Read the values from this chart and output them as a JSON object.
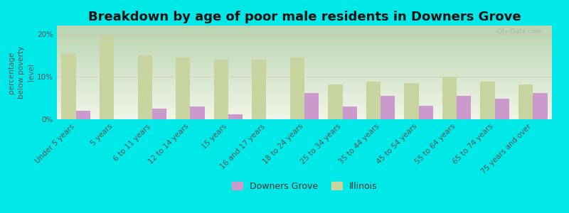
{
  "title": "Breakdown by age of poor male residents in Downers Grove",
  "ylabel": "percentage\nbelow poverty\nlevel",
  "categories": [
    "Under 5 years",
    "5 years",
    "6 to 11 years",
    "12 to 14 years",
    "15 years",
    "16 and 17 years",
    "18 to 24 years",
    "25 to 34 years",
    "35 to 44 years",
    "45 to 54 years",
    "55 to 64 years",
    "65 to 74 years",
    "75 years and over"
  ],
  "downers_grove": [
    2.0,
    0.0,
    2.5,
    3.0,
    1.2,
    0.0,
    6.2,
    3.0,
    5.5,
    3.2,
    5.5,
    4.8,
    6.2
  ],
  "illinois": [
    15.5,
    19.5,
    15.0,
    14.5,
    14.0,
    14.0,
    14.5,
    8.2,
    8.8,
    8.5,
    10.0,
    8.8,
    8.2
  ],
  "dg_color": "#cc99cc",
  "il_color": "#c8d4a0",
  "background_color": "#00e8e8",
  "plot_bg_top": "#b8d4b0",
  "plot_bg_bottom": "#f0f5e8",
  "ylim": [
    0,
    22
  ],
  "yticks": [
    0,
    10,
    20
  ],
  "ytick_labels": [
    "0%",
    "10%",
    "20%"
  ],
  "bar_width": 0.38,
  "title_fontsize": 13,
  "axis_label_fontsize": 7.5,
  "tick_fontsize": 7.5,
  "legend_fontsize": 9,
  "watermark": "City-Data.com"
}
